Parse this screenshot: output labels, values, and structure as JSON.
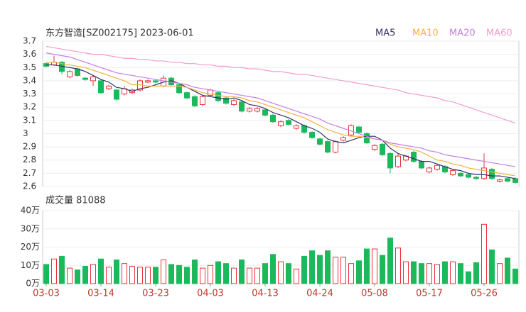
{
  "chart_data": {
    "type": "candlestick",
    "title": "东方智造[SZ002175] 2023-06-01",
    "volume_title": "成交量 81088",
    "categories": [
      "03-03",
      null,
      null,
      null,
      null,
      null,
      null,
      "03-14",
      null,
      null,
      null,
      null,
      null,
      null,
      "03-23",
      null,
      null,
      null,
      null,
      null,
      null,
      "04-03",
      null,
      null,
      null,
      null,
      null,
      null,
      "04-13",
      null,
      null,
      null,
      null,
      null,
      null,
      "04-24",
      null,
      null,
      null,
      null,
      null,
      null,
      "05-08",
      null,
      null,
      null,
      null,
      null,
      null,
      "05-17",
      null,
      null,
      null,
      null,
      null,
      null,
      "05-26",
      null,
      null,
      null,
      null
    ],
    "open": [
      3.53,
      3.52,
      3.54,
      3.43,
      3.49,
      3.42,
      3.4,
      3.4,
      3.34,
      3.33,
      3.3,
      3.31,
      3.33,
      3.39,
      3.4,
      3.36,
      3.42,
      3.37,
      3.31,
      3.28,
      3.22,
      3.29,
      3.31,
      3.27,
      3.22,
      3.24,
      3.17,
      3.17,
      3.18,
      3.14,
      3.06,
      3.1,
      3.04,
      3.06,
      3.01,
      2.96,
      2.94,
      2.86,
      2.95,
      2.99,
      3.05,
      3.0,
      2.88,
      2.92,
      2.85,
      2.75,
      2.8,
      2.86,
      2.79,
      2.71,
      2.73,
      2.75,
      2.69,
      2.7,
      2.69,
      2.67,
      2.66,
      2.73,
      2.64,
      2.66,
      2.66
    ],
    "high": [
      3.54,
      3.59,
      3.55,
      3.48,
      3.5,
      3.43,
      3.44,
      3.41,
      3.37,
      3.34,
      3.36,
      3.34,
      3.41,
      3.41,
      3.41,
      3.44,
      3.43,
      3.38,
      3.32,
      3.29,
      3.29,
      3.34,
      3.32,
      3.28,
      3.26,
      3.25,
      3.2,
      3.2,
      3.19,
      3.15,
      3.1,
      3.11,
      3.07,
      3.07,
      3.02,
      2.97,
      2.95,
      2.95,
      2.98,
      3.07,
      3.06,
      3.01,
      2.92,
      2.93,
      2.86,
      2.85,
      2.84,
      2.87,
      2.8,
      2.75,
      2.77,
      2.76,
      2.73,
      2.71,
      2.7,
      2.68,
      2.85,
      2.74,
      2.66,
      2.67,
      2.67
    ],
    "low": [
      3.5,
      3.51,
      3.45,
      3.42,
      3.43,
      3.4,
      3.36,
      3.3,
      3.33,
      3.25,
      3.29,
      3.3,
      3.32,
      3.38,
      3.38,
      3.35,
      3.36,
      3.3,
      3.26,
      3.2,
      3.21,
      3.28,
      3.24,
      3.22,
      3.21,
      3.16,
      3.16,
      3.16,
      3.13,
      3.08,
      3.05,
      3.06,
      3.03,
      3.0,
      2.96,
      2.91,
      2.85,
      2.85,
      2.94,
      2.98,
      3.0,
      2.92,
      2.87,
      2.83,
      2.7,
      2.74,
      2.79,
      2.78,
      2.73,
      2.7,
      2.72,
      2.7,
      2.68,
      2.67,
      2.66,
      2.65,
      2.65,
      2.65,
      2.63,
      2.63,
      2.62
    ],
    "close": [
      3.51,
      3.54,
      3.47,
      3.47,
      3.44,
      3.41,
      3.43,
      3.31,
      3.36,
      3.26,
      3.34,
      3.33,
      3.4,
      3.4,
      3.39,
      3.42,
      3.37,
      3.31,
      3.27,
      3.21,
      3.28,
      3.33,
      3.25,
      3.23,
      3.25,
      3.17,
      3.19,
      3.19,
      3.14,
      3.09,
      3.09,
      3.07,
      3.06,
      3.01,
      2.97,
      2.92,
      2.86,
      2.94,
      2.97,
      3.06,
      3.01,
      2.93,
      2.91,
      2.84,
      2.74,
      2.83,
      2.83,
      2.79,
      2.74,
      2.74,
      2.76,
      2.71,
      2.72,
      2.68,
      2.67,
      2.66,
      2.74,
      2.66,
      2.65,
      2.64,
      2.63
    ],
    "volume": [
      10.5,
      13.5,
      15,
      8.5,
      7.5,
      9.5,
      10.5,
      13.5,
      9,
      13,
      11,
      9.5,
      9,
      9,
      9,
      13,
      10.5,
      10,
      9,
      13,
      8.5,
      10,
      12,
      11,
      8.5,
      13,
      8.5,
      8.5,
      11,
      16,
      12,
      11,
      8,
      15,
      18,
      15.5,
      18,
      14.5,
      14.5,
      11,
      12.5,
      19,
      19,
      15.5,
      25,
      19.5,
      12,
      12,
      11,
      11,
      10.5,
      12,
      12,
      11,
      6.5,
      11.5,
      32.5,
      18.5,
      11,
      14,
      8
    ],
    "up_color": "#e8303a",
    "down_color": "#1cb85c",
    "series": [
      {
        "name": "MA5",
        "color": "#333366",
        "values": [
          3.52,
          3.52,
          3.51,
          3.5,
          3.49,
          3.47,
          3.44,
          3.41,
          3.39,
          3.35,
          3.34,
          3.32,
          3.34,
          3.35,
          3.37,
          3.39,
          3.4,
          3.38,
          3.35,
          3.32,
          3.29,
          3.28,
          3.27,
          3.26,
          3.27,
          3.25,
          3.22,
          3.21,
          3.19,
          3.16,
          3.14,
          3.12,
          3.09,
          3.06,
          3.04,
          3.01,
          2.96,
          2.94,
          2.93,
          2.95,
          2.97,
          2.98,
          2.98,
          2.95,
          2.89,
          2.85,
          2.83,
          2.81,
          2.79,
          2.79,
          2.77,
          2.75,
          2.73,
          2.72,
          2.7,
          2.69,
          2.69,
          2.68,
          2.68,
          2.67,
          2.66
        ]
      },
      {
        "name": "MA10",
        "color": "#f5b041",
        "values": [
          3.54,
          3.54,
          3.53,
          3.52,
          3.51,
          3.5,
          3.48,
          3.46,
          3.44,
          3.42,
          3.4,
          3.37,
          3.37,
          3.36,
          3.36,
          3.36,
          3.36,
          3.36,
          3.35,
          3.33,
          3.31,
          3.3,
          3.29,
          3.28,
          3.28,
          3.27,
          3.25,
          3.24,
          3.22,
          3.2,
          3.18,
          3.16,
          3.14,
          3.12,
          3.09,
          3.06,
          3.03,
          3.01,
          2.99,
          2.98,
          2.98,
          2.97,
          2.96,
          2.95,
          2.92,
          2.9,
          2.89,
          2.88,
          2.86,
          2.83,
          2.8,
          2.79,
          2.77,
          2.76,
          2.74,
          2.73,
          2.72,
          2.71,
          2.7,
          2.69,
          2.68
        ]
      },
      {
        "name": "MA20",
        "color": "#c37ee6",
        "values": [
          3.61,
          3.6,
          3.59,
          3.58,
          3.56,
          3.54,
          3.52,
          3.5,
          3.48,
          3.46,
          3.45,
          3.44,
          3.43,
          3.42,
          3.41,
          3.4,
          3.39,
          3.38,
          3.37,
          3.35,
          3.34,
          3.33,
          3.32,
          3.31,
          3.3,
          3.29,
          3.28,
          3.27,
          3.25,
          3.23,
          3.21,
          3.19,
          3.17,
          3.15,
          3.13,
          3.11,
          3.08,
          3.06,
          3.04,
          3.02,
          3.0,
          2.98,
          2.96,
          2.95,
          2.93,
          2.92,
          2.91,
          2.9,
          2.89,
          2.87,
          2.86,
          2.84,
          2.83,
          2.82,
          2.81,
          2.8,
          2.79,
          2.78,
          2.77,
          2.76,
          2.75
        ]
      },
      {
        "name": "MA60",
        "color": "#f29ccf",
        "values": [
          3.66,
          3.65,
          3.64,
          3.63,
          3.62,
          3.61,
          3.6,
          3.6,
          3.59,
          3.58,
          3.57,
          3.57,
          3.56,
          3.56,
          3.55,
          3.55,
          3.54,
          3.54,
          3.53,
          3.53,
          3.52,
          3.52,
          3.51,
          3.51,
          3.5,
          3.5,
          3.49,
          3.49,
          3.48,
          3.47,
          3.47,
          3.46,
          3.45,
          3.45,
          3.44,
          3.43,
          3.42,
          3.41,
          3.4,
          3.39,
          3.38,
          3.37,
          3.36,
          3.35,
          3.34,
          3.33,
          3.31,
          3.3,
          3.29,
          3.28,
          3.27,
          3.25,
          3.24,
          3.22,
          3.2,
          3.18,
          3.16,
          3.14,
          3.12,
          3.1,
          3.08
        ]
      }
    ],
    "ylim": [
      2.6,
      3.7
    ],
    "yticks": [
      2.6,
      2.7,
      2.8,
      2.9,
      3,
      3.1,
      3.2,
      3.3,
      3.4,
      3.5,
      3.6,
      3.7
    ],
    "vlim": [
      0,
      40
    ],
    "vticks": [
      {
        "value": 0,
        "label": "0万"
      },
      {
        "value": 10,
        "label": "10万"
      },
      {
        "value": 20,
        "label": "20万"
      },
      {
        "value": 30,
        "label": "30万"
      },
      {
        "value": 40,
        "label": "40万"
      }
    ],
    "grid": true
  }
}
